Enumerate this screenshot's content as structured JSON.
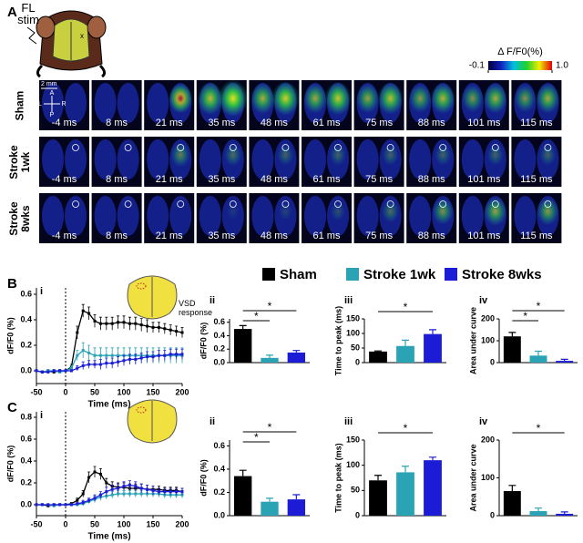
{
  "panel_a": {
    "label": "A",
    "stim": "FL stim",
    "scale_bar": "2 mm",
    "compass": [
      "A",
      "L",
      "R",
      "P"
    ],
    "colorbar": {
      "title": "Δ F/F0(%)",
      "ticks": [
        -0.1,
        {
          "value": 1,
          "label": "1.0"
        }
      ]
    },
    "rows": [
      "Sham",
      "Stroke 1wk",
      "Stroke 8wks"
    ],
    "times": [
      "-4 ms",
      "8 ms",
      "21 ms",
      "35 ms",
      "48 ms",
      "61 ms",
      "75 ms",
      "88 ms",
      "101 ms",
      "115 ms"
    ]
  },
  "chart_data": [
    {
      "type": "line",
      "panel": "B",
      "label": "i",
      "xlabel": "Time (ms)",
      "ylabel": "dF/F0 (%)",
      "xlim": [
        -50,
        200
      ],
      "xticks": [
        -50,
        0,
        50,
        100,
        150,
        200
      ],
      "ylim": [
        -0.1,
        0.65
      ],
      "yticks": [
        {
          "value": 0,
          "label": "0.0"
        },
        0.2,
        0.4,
        0.6
      ],
      "annotation": "VSD response",
      "x": [
        -50,
        -40,
        -30,
        -20,
        -10,
        0,
        10,
        20,
        30,
        40,
        50,
        60,
        70,
        80,
        90,
        100,
        110,
        120,
        130,
        140,
        150,
        160,
        170,
        180,
        190,
        200
      ],
      "series": [
        {
          "name": "Sham",
          "color": "#000000",
          "values": [
            0,
            -0.01,
            0,
            -0.01,
            0,
            0,
            0.03,
            0.3,
            0.47,
            0.45,
            0.39,
            0.37,
            0.37,
            0.37,
            0.38,
            0.38,
            0.37,
            0.37,
            0.36,
            0.35,
            0.34,
            0.34,
            0.33,
            0.32,
            0.31,
            0.3
          ],
          "errors": [
            0.01,
            0.01,
            0.01,
            0.01,
            0.01,
            0.01,
            0.02,
            0.05,
            0.05,
            0.05,
            0.05,
            0.05,
            0.05,
            0.05,
            0.05,
            0.05,
            0.05,
            0.05,
            0.05,
            0.05,
            0.04,
            0.04,
            0.04,
            0.04,
            0.04,
            0.04
          ]
        },
        {
          "name": "Stroke 1wk",
          "color": "#2aa3b5",
          "values": [
            0,
            -0.01,
            0,
            0,
            -0.01,
            0,
            0.02,
            0.12,
            0.16,
            0.14,
            0.12,
            0.12,
            0.12,
            0.12,
            0.12,
            0.12,
            0.12,
            0.12,
            0.12,
            0.12,
            0.12,
            0.12,
            0.12,
            0.12,
            0.12,
            0.12
          ],
          "errors": [
            0.01,
            0.01,
            0.01,
            0.01,
            0.01,
            0.01,
            0.02,
            0.04,
            0.06,
            0.06,
            0.06,
            0.06,
            0.06,
            0.06,
            0.06,
            0.06,
            0.06,
            0.06,
            0.06,
            0.06,
            0.06,
            0.06,
            0.06,
            0.06,
            0.06,
            0.06
          ]
        },
        {
          "name": "Stroke 8wks",
          "color": "#1c1cd6",
          "values": [
            0,
            -0.01,
            -0.01,
            0,
            0,
            0,
            0,
            0.02,
            0.04,
            0.05,
            0.05,
            0.05,
            0.06,
            0.06,
            0.07,
            0.08,
            0.09,
            0.09,
            0.1,
            0.11,
            0.11,
            0.12,
            0.12,
            0.13,
            0.13,
            0.13
          ],
          "errors": [
            0.01,
            0.01,
            0.01,
            0.01,
            0.01,
            0.01,
            0.01,
            0.02,
            0.03,
            0.03,
            0.03,
            0.04,
            0.04,
            0.04,
            0.04,
            0.04,
            0.04,
            0.04,
            0.04,
            0.04,
            0.04,
            0.04,
            0.04,
            0.04,
            0.04,
            0.04
          ]
        }
      ]
    },
    {
      "type": "bar",
      "label": "ii",
      "ylabel": "dF/F0 (%)",
      "ylim": [
        0,
        0.65
      ],
      "yticks": [
        {
          "value": 0,
          "label": "0.0"
        },
        0.2,
        0.4,
        0.6
      ],
      "values": [
        0.5,
        0.07,
        0.15
      ],
      "errors": [
        0.05,
        0.04,
        0.03
      ],
      "colors": [
        "#000000",
        "#2aa3b5",
        "#1c1cd6"
      ],
      "significance": [
        {
          "pair": [
            0,
            1
          ],
          "label": "*"
        },
        {
          "pair": [
            0,
            2
          ],
          "label": "*"
        }
      ]
    },
    {
      "type": "bar",
      "label": "iii",
      "ylabel": "Time to peak (ms)",
      "ylim": [
        0,
        150
      ],
      "yticks": [
        0,
        50,
        100,
        150
      ],
      "values": [
        38,
        57,
        98
      ],
      "errors": [
        2,
        20,
        15
      ],
      "colors": [
        "#000000",
        "#2aa3b5",
        "#1c1cd6"
      ],
      "significance": [
        {
          "pair": [
            0,
            2
          ],
          "label": "*"
        }
      ]
    },
    {
      "type": "bar",
      "label": "iv",
      "ylabel": "Area under curve",
      "ylim": [
        0,
        200
      ],
      "yticks": [
        0,
        100,
        200
      ],
      "values": [
        120,
        32,
        8
      ],
      "errors": [
        18,
        20,
        7
      ],
      "colors": [
        "#000000",
        "#2aa3b5",
        "#1c1cd6"
      ],
      "significance": [
        {
          "pair": [
            0,
            1
          ],
          "label": "*"
        },
        {
          "pair": [
            0,
            2
          ],
          "label": "*"
        }
      ]
    },
    {
      "type": "line",
      "panel": "C",
      "label": "i",
      "xlabel": "Time (ms)",
      "ylabel": "dF/F0 (%)",
      "xlim": [
        -50,
        200
      ],
      "xticks": [
        -50,
        0,
        50,
        100,
        150,
        200
      ],
      "ylim": [
        -0.1,
        0.85
      ],
      "yticks": [
        {
          "value": 0,
          "label": "0.0"
        },
        0.2,
        0.4,
        0.6,
        0.8
      ],
      "x": [
        -50,
        -40,
        -30,
        -20,
        -10,
        0,
        10,
        20,
        30,
        40,
        50,
        60,
        70,
        80,
        90,
        100,
        110,
        120,
        130,
        140,
        150,
        160,
        170,
        180,
        190,
        200
      ],
      "series": [
        {
          "color": "#000000",
          "values": [
            0,
            0,
            -0.01,
            0,
            0,
            0,
            0.01,
            0.04,
            0.1,
            0.25,
            0.3,
            0.28,
            0.2,
            0.17,
            0.16,
            0.16,
            0.15,
            0.15,
            0.15,
            0.14,
            0.14,
            0.14,
            0.13,
            0.13,
            0.13,
            0.12
          ],
          "errors": [
            0.01,
            0.01,
            0.01,
            0.01,
            0.01,
            0.01,
            0.01,
            0.02,
            0.03,
            0.05,
            0.05,
            0.05,
            0.04,
            0.04,
            0.04,
            0.04,
            0.04,
            0.04,
            0.04,
            0.04,
            0.03,
            0.03,
            0.03,
            0.03,
            0.03,
            0.03
          ]
        },
        {
          "color": "#2aa3b5",
          "values": [
            0,
            0,
            0,
            -0.01,
            0,
            0,
            0,
            0,
            0.01,
            0.03,
            0.05,
            0.07,
            0.08,
            0.09,
            0.1,
            0.1,
            0.1,
            0.1,
            0.1,
            0.1,
            0.1,
            0.1,
            0.09,
            0.09,
            0.09,
            0.09
          ],
          "errors": [
            0.01,
            0.01,
            0.01,
            0.01,
            0.01,
            0.01,
            0.01,
            0.01,
            0.02,
            0.02,
            0.03,
            0.03,
            0.03,
            0.03,
            0.03,
            0.03,
            0.03,
            0.03,
            0.03,
            0.03,
            0.03,
            0.03,
            0.03,
            0.03,
            0.03,
            0.03
          ]
        },
        {
          "color": "#1c1cd6",
          "values": [
            0,
            0,
            0,
            0,
            0,
            0,
            0,
            0.01,
            0.02,
            0.04,
            0.06,
            0.09,
            0.12,
            0.14,
            0.15,
            0.17,
            0.18,
            0.17,
            0.15,
            0.14,
            0.13,
            0.12,
            0.12,
            0.12,
            0.12,
            0.12
          ],
          "errors": [
            0.01,
            0.01,
            0.01,
            0.01,
            0.01,
            0.01,
            0.01,
            0.01,
            0.02,
            0.02,
            0.03,
            0.03,
            0.04,
            0.04,
            0.04,
            0.04,
            0.04,
            0.04,
            0.04,
            0.04,
            0.04,
            0.03,
            0.03,
            0.03,
            0.03,
            0.03
          ]
        }
      ]
    },
    {
      "type": "bar",
      "label": "ii",
      "ylabel": "dF/F0 (%)",
      "ylim": [
        0,
        0.65
      ],
      "yticks": [
        {
          "value": 0,
          "label": "0.0"
        },
        0.2,
        0.4,
        0.6
      ],
      "values": [
        0.34,
        0.12,
        0.14
      ],
      "errors": [
        0.05,
        0.03,
        0.04
      ],
      "colors": [
        "#000000",
        "#2aa3b5",
        "#1c1cd6"
      ],
      "significance": [
        {
          "pair": [
            0,
            1
          ],
          "label": "*"
        },
        {
          "pair": [
            0,
            2
          ],
          "label": "*"
        }
      ]
    },
    {
      "type": "bar",
      "label": "iii",
      "ylabel": "Time to peak (ms)",
      "ylim": [
        0,
        150
      ],
      "yticks": [
        0,
        50,
        100,
        150
      ],
      "values": [
        70,
        86,
        110
      ],
      "errors": [
        10,
        12,
        6
      ],
      "colors": [
        "#000000",
        "#2aa3b5",
        "#1c1cd6"
      ],
      "significance": [
        {
          "pair": [
            0,
            2
          ],
          "label": "*"
        }
      ]
    },
    {
      "type": "bar",
      "label": "iv",
      "ylabel": "Area under curve",
      "ylim": [
        0,
        200
      ],
      "yticks": [
        0,
        100,
        200
      ],
      "values": [
        65,
        12,
        5
      ],
      "errors": [
        15,
        8,
        5
      ],
      "colors": [
        "#000000",
        "#2aa3b5",
        "#1c1cd6"
      ],
      "significance": [
        {
          "pair": [
            0,
            2
          ],
          "label": "*"
        }
      ]
    }
  ]
}
